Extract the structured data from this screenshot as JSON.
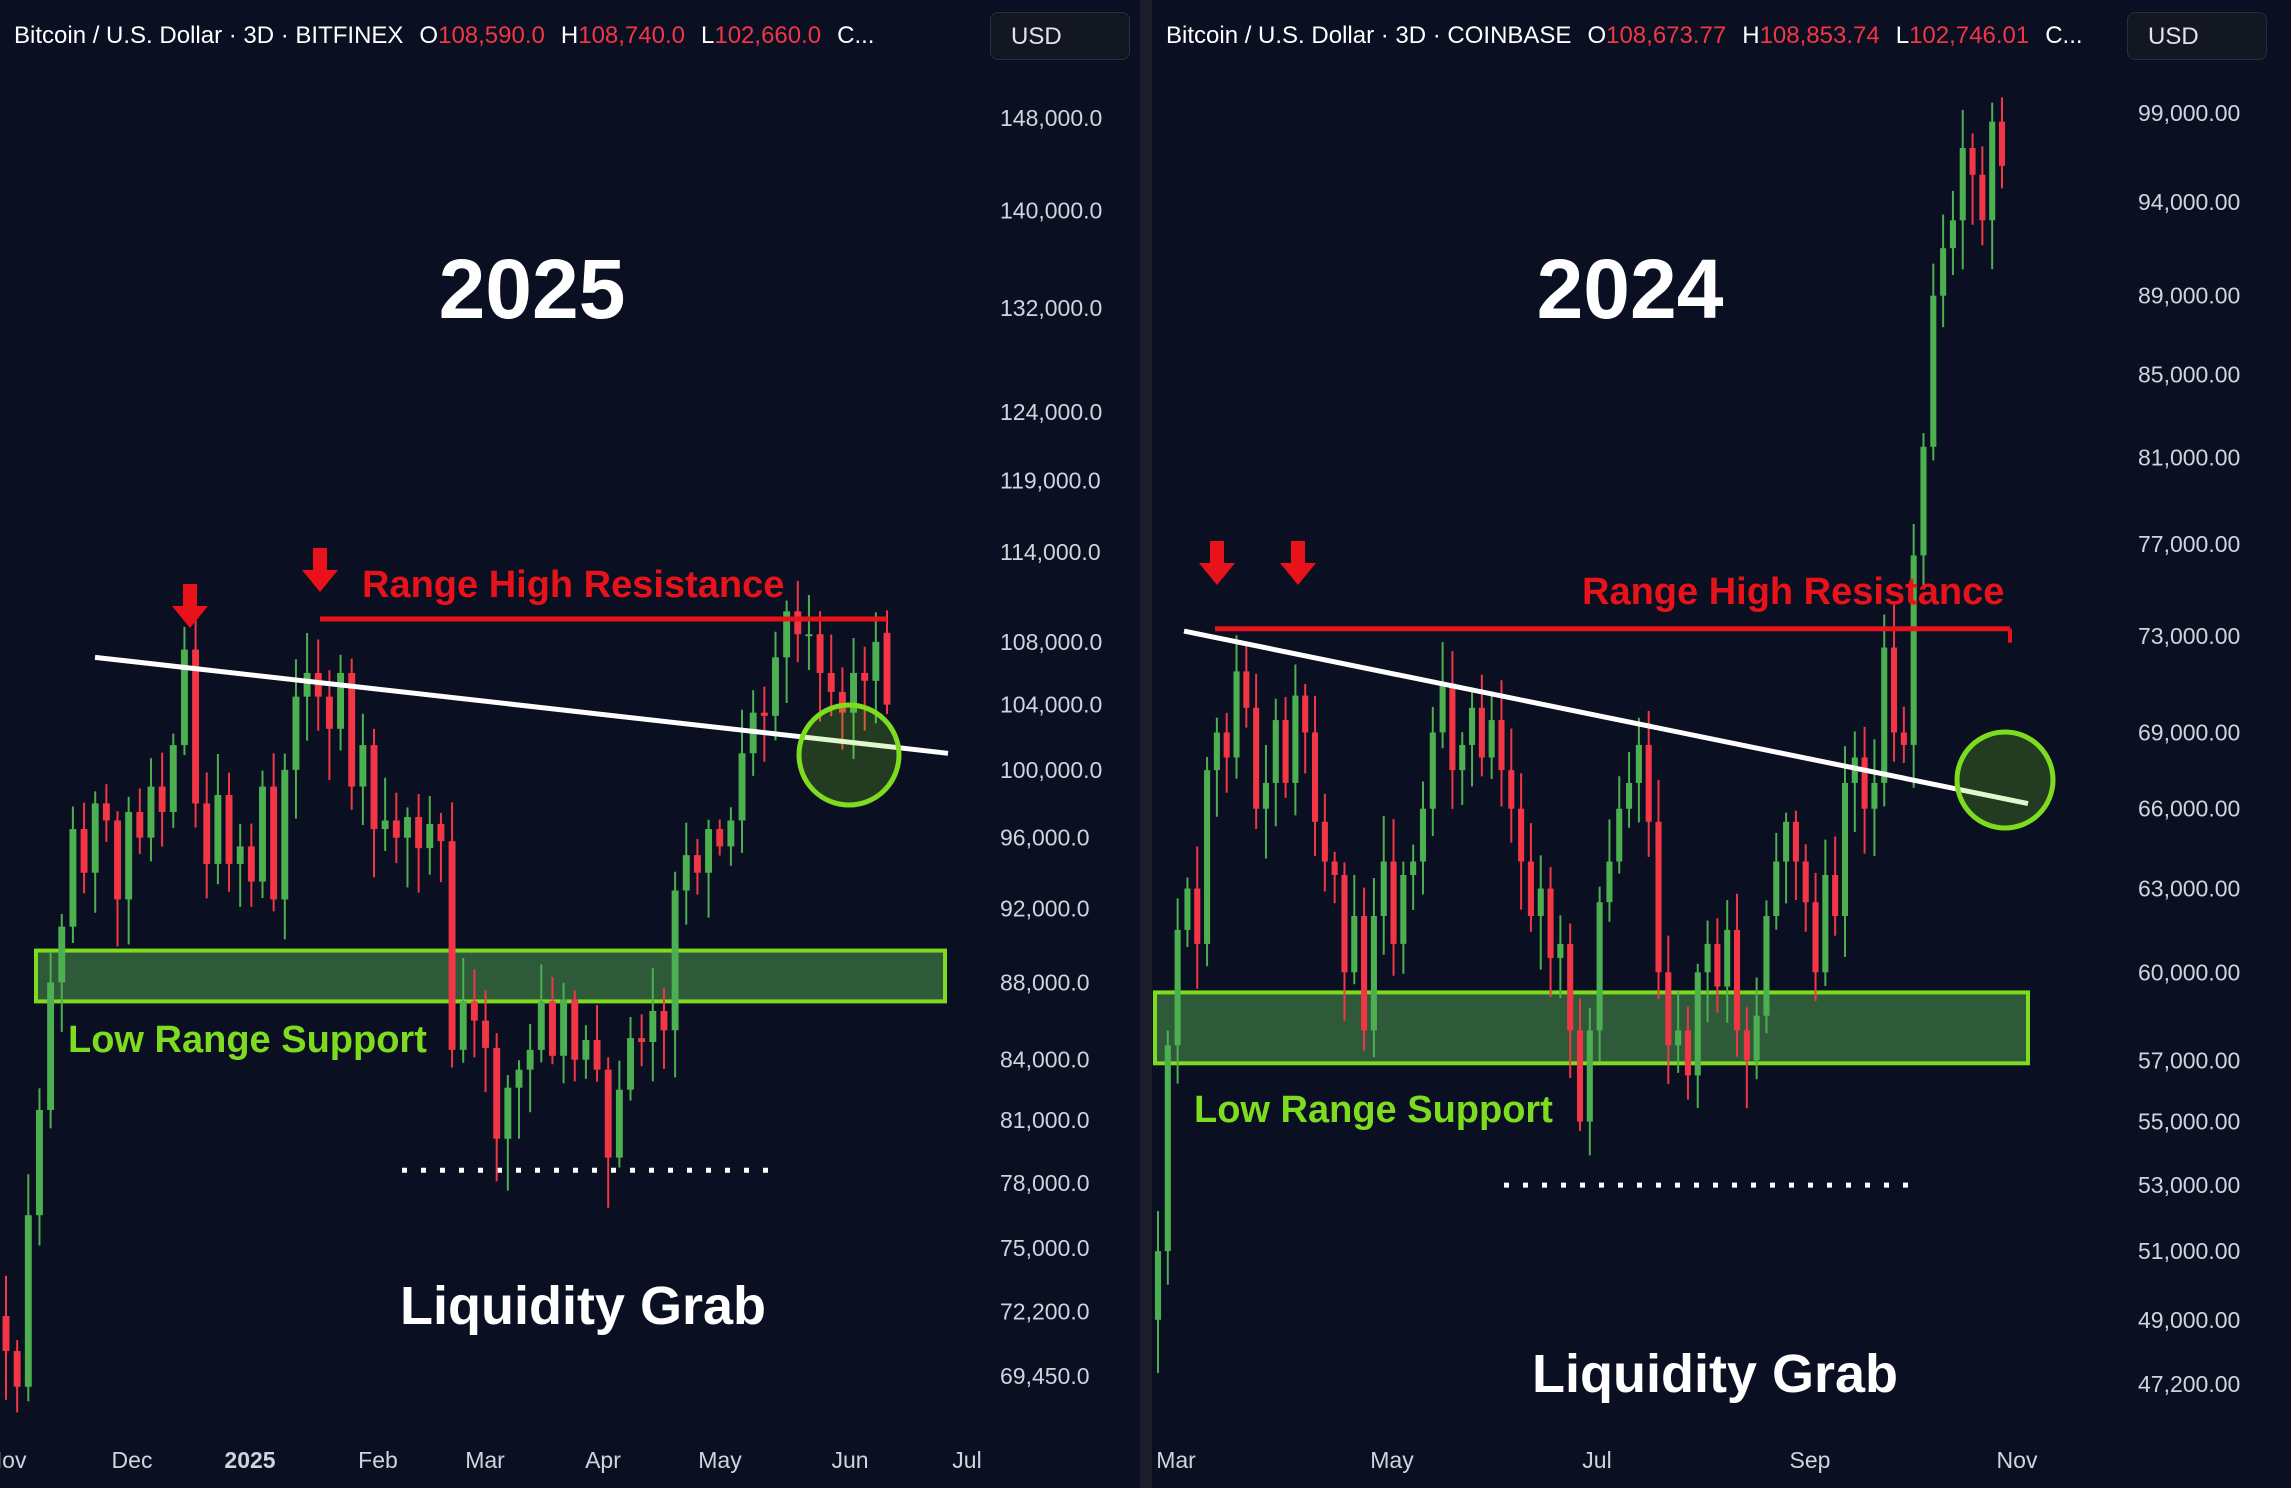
{
  "colors": {
    "up": "#4caf50",
    "down": "#f23645",
    "resistance": "#e8131a",
    "support": "#7ddc1f",
    "support_fill": "#2e5a3a",
    "trendline": "#ffffff",
    "circle": "#7ddc1f"
  },
  "panels": [
    {
      "header": {
        "symbol": "Bitcoin / U.S. Dollar · 3D · BITFINEX",
        "o_label": "O",
        "o_value": "108,590.0",
        "h_label": "H",
        "h_value": "108,740.0",
        "l_label": "L",
        "l_value": "102,660.0",
        "c_label": "C..."
      },
      "currency_button": "USD",
      "title": "2025",
      "resistance_label": "Range High Resistance",
      "support_label": "Low Range Support",
      "grab_label": "Liquidity Grab"
    },
    {
      "header": {
        "symbol": "Bitcoin / U.S. Dollar · 3D · COINBASE",
        "o_label": "O",
        "o_value": "108,673.77",
        "h_label": "H",
        "h_value": "108,853.74",
        "l_label": "L",
        "l_value": "102,746.01",
        "c_label": "C..."
      },
      "currency_button": "USD",
      "title": "2024",
      "resistance_label": "Range High Resistance",
      "support_label": "Low Range Support",
      "grab_label": "Liquidity Grab"
    }
  ],
  "chart_data": [
    {
      "type": "candlestick",
      "title": "2025",
      "exchange": "BITFINEX",
      "interval": "3D",
      "scale": "log",
      "ylim": [
        68000,
        150000
      ],
      "y_ticks": [
        "148,000.0",
        "140,000.0",
        "132,000.0",
        "124,000.0",
        "119,000.0",
        "114,000.0",
        "108,000.0",
        "104,000.0",
        "100,000.0",
        "96,000.0",
        "92,000.0",
        "88,000.0",
        "84,000.0",
        "81,000.0",
        "78,000.0",
        "75,000.0",
        "72,200.0",
        "69,450.0"
      ],
      "x_ticks": [
        "Nov",
        "Dec",
        "2025",
        "Feb",
        "Mar",
        "Apr",
        "May",
        "Jun",
        "Jul"
      ],
      "x_tick_dates": [
        "2024-11-01",
        "2024-12-01",
        "2025-01-01",
        "2025-02-01",
        "2025-03-01",
        "2025-04-01",
        "2025-05-01",
        "2025-06-01",
        "2025-07-01"
      ],
      "x_range": [
        "2024-11-01",
        "2025-07-01"
      ],
      "last_candle": {
        "open": 108590.0,
        "high": 108740.0,
        "low": 102660.0
      },
      "closes": [
        70500,
        69000,
        76500,
        81500,
        88000,
        91000,
        96500,
        94000,
        98000,
        97000,
        92500,
        97500,
        96000,
        99000,
        97500,
        101500,
        107500,
        98000,
        94500,
        98500,
        94500,
        95500,
        93500,
        99000,
        92500,
        100000,
        104500,
        106000,
        104500,
        102500,
        106000,
        99000,
        101500,
        96500,
        97000,
        96000,
        97200,
        95400,
        96800,
        95800,
        84500,
        87000,
        86000,
        84600,
        80100,
        82600,
        83500,
        84500,
        87000,
        84200,
        87100,
        84000,
        85000,
        83500,
        79200,
        82500,
        85100,
        84900,
        86500,
        85500,
        93000,
        95000,
        94000,
        96500,
        95500,
        97000,
        101000,
        103500,
        103300,
        107000,
        110000,
        108500,
        108500,
        106000,
        104800,
        103500,
        106000,
        105500,
        108000,
        104000
      ],
      "trendline": {
        "start": [
          "2024-12-01",
          107000
        ],
        "end": [
          "2025-06-28",
          101000
        ]
      },
      "range_high_resistance": {
        "value": 109500,
        "from": "2025-01-20",
        "to": "2025-06-08"
      },
      "low_range_support": {
        "bottom": 87000,
        "top": 89700
      },
      "liquidity_grab_level": 78600,
      "markers": [
        {
          "type": "down_arrow",
          "date": "2024-12-17"
        },
        {
          "type": "down_arrow",
          "date": "2025-01-20"
        }
      ],
      "highlight_circle": {
        "date": "2025-06-01",
        "price": 102000
      }
    },
    {
      "type": "candlestick",
      "title": "2024",
      "exchange": "COINBASE",
      "interval": "3D",
      "scale": "log",
      "ylim": [
        45500,
        102000
      ],
      "y_ticks": [
        "99,000.00",
        "94,000.00",
        "89,000.00",
        "85,000.00",
        "81,000.00",
        "77,000.00",
        "73,000.00",
        "69,000.00",
        "66,000.00",
        "63,000.00",
        "60,000.00",
        "57,000.00",
        "55,000.00",
        "53,000.00",
        "51,000.00",
        "49,000.00",
        "47,200.00"
      ],
      "x_ticks": [
        "Mar",
        "May",
        "Jul",
        "Sep",
        "Nov"
      ],
      "x_tick_dates": [
        "2024-03-01",
        "2024-05-01",
        "2024-07-01",
        "2024-09-01",
        "2024-11-01"
      ],
      "x_range": [
        "2024-03-01",
        "2024-12-05"
      ],
      "closes": [
        51000,
        57500,
        61500,
        63000,
        61000,
        67500,
        69000,
        68000,
        71500,
        70000,
        66000,
        67000,
        69500,
        67000,
        70500,
        69000,
        65500,
        64000,
        63500,
        60000,
        62000,
        58000,
        62000,
        64000,
        61000,
        63500,
        64000,
        66000,
        69000,
        71000,
        67500,
        68500,
        70000,
        68000,
        69500,
        67500,
        66000,
        64000,
        62000,
        63000,
        60500,
        61000,
        58000,
        55000,
        58000,
        62500,
        64000,
        66000,
        67000,
        68500,
        65500,
        60000,
        57500,
        58000,
        56500,
        60000,
        61000,
        59500,
        61500,
        58000,
        57000,
        58500,
        62000,
        64000,
        65500,
        64000,
        62500,
        60000,
        63500,
        62000,
        67000,
        68000,
        66000,
        67000,
        72500,
        69000,
        68500,
        76500,
        81500,
        89000,
        91500,
        93000,
        97000,
        95500,
        93000,
        98500,
        96000
      ],
      "trendline": {
        "start": [
          "2024-03-12",
          73200
        ],
        "end": [
          "2024-10-28",
          66200
        ]
      },
      "range_high_resistance": {
        "value": 73300,
        "from": "2024-03-14",
        "to": "2024-10-25"
      },
      "low_range_support": {
        "bottom": 56900,
        "top": 59300
      },
      "liquidity_grab_level": 53000,
      "markers": [
        {
          "type": "down_arrow",
          "date": "2024-03-15"
        },
        {
          "type": "down_arrow",
          "date": "2024-03-29"
        }
      ],
      "highlight_circle": {
        "date": "2024-10-27",
        "price": 67500
      }
    }
  ]
}
